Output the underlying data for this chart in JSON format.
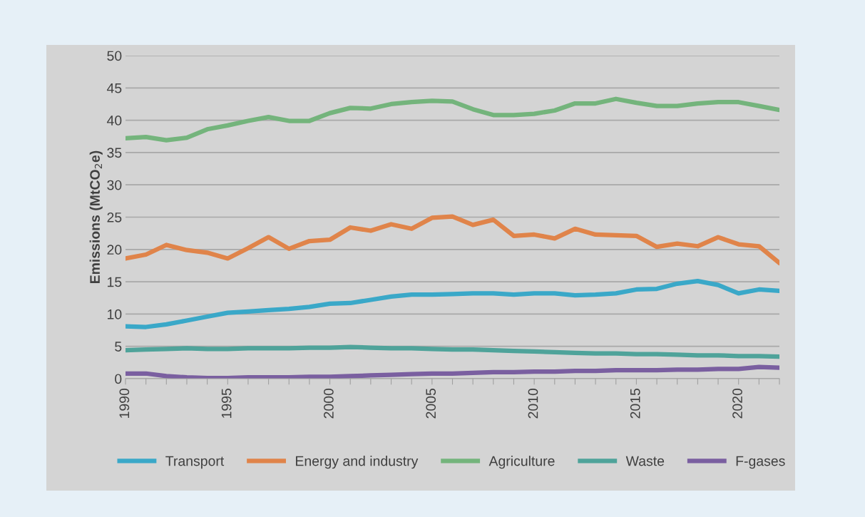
{
  "chart_data": {
    "type": "line",
    "ylabel": "Emissions (MtCO$_{2}$e)",
    "x": [
      1990,
      1991,
      1992,
      1993,
      1994,
      1995,
      1996,
      1997,
      1998,
      1999,
      2000,
      2001,
      2002,
      2003,
      2004,
      2005,
      2006,
      2007,
      2008,
      2009,
      2010,
      2011,
      2012,
      2013,
      2014,
      2015,
      2016,
      2017,
      2018,
      2019,
      2020,
      2021,
      2022
    ],
    "series": [
      {
        "name": "Transport",
        "color": "#3aa8c8",
        "values": [
          8.1,
          8.0,
          8.4,
          9.0,
          9.6,
          10.2,
          10.4,
          10.6,
          10.8,
          11.1,
          11.6,
          11.7,
          12.2,
          12.7,
          13.0,
          13.0,
          13.1,
          13.2,
          13.2,
          13.0,
          13.2,
          13.2,
          12.9,
          13.0,
          13.2,
          13.8,
          13.9,
          14.7,
          15.1,
          14.5,
          13.2,
          13.8,
          13.6
        ]
      },
      {
        "name": "Energy and industry",
        "color": "#e0844a",
        "values": [
          18.6,
          19.2,
          20.7,
          19.9,
          19.5,
          18.6,
          20.2,
          21.9,
          20.1,
          21.3,
          21.5,
          23.4,
          22.9,
          23.9,
          23.2,
          24.9,
          25.1,
          23.8,
          24.6,
          22.1,
          22.3,
          21.7,
          23.2,
          22.3,
          22.2,
          22.1,
          20.4,
          20.9,
          20.5,
          21.9,
          20.8,
          20.5,
          17.9
        ]
      },
      {
        "name": "Agriculture",
        "color": "#74b47c",
        "values": [
          37.2,
          37.4,
          36.9,
          37.3,
          38.6,
          39.2,
          39.9,
          40.5,
          39.9,
          39.9,
          41.1,
          41.9,
          41.8,
          42.5,
          42.8,
          43.0,
          42.9,
          41.7,
          40.8,
          40.8,
          41.0,
          41.5,
          42.6,
          42.6,
          43.3,
          42.7,
          42.2,
          42.2,
          42.6,
          42.8,
          42.8,
          42.2,
          41.6
        ]
      },
      {
        "name": "Waste",
        "color": "#4fa39a",
        "values": [
          4.4,
          4.5,
          4.6,
          4.7,
          4.6,
          4.6,
          4.7,
          4.7,
          4.7,
          4.8,
          4.8,
          4.9,
          4.8,
          4.7,
          4.7,
          4.6,
          4.5,
          4.5,
          4.4,
          4.3,
          4.2,
          4.1,
          4.0,
          3.9,
          3.9,
          3.8,
          3.8,
          3.7,
          3.6,
          3.6,
          3.5,
          3.5,
          3.4
        ]
      },
      {
        "name": "F-gases",
        "color": "#7a5fa0",
        "values": [
          0.8,
          0.8,
          0.4,
          0.2,
          0.1,
          0.1,
          0.2,
          0.2,
          0.2,
          0.3,
          0.3,
          0.4,
          0.5,
          0.6,
          0.7,
          0.8,
          0.8,
          0.9,
          1.0,
          1.0,
          1.1,
          1.1,
          1.2,
          1.2,
          1.3,
          1.3,
          1.3,
          1.4,
          1.4,
          1.5,
          1.5,
          1.8,
          1.7
        ]
      }
    ],
    "xlim": [
      1990,
      2022
    ],
    "xticks": [
      1990,
      {
        "value": 1991,
        "label": null
      },
      {
        "value": 1992,
        "label": null
      },
      {
        "value": 1993,
        "label": null
      },
      {
        "value": 1994,
        "label": null
      },
      1995,
      {
        "value": 1996,
        "label": null
      },
      {
        "value": 1997,
        "label": null
      },
      {
        "value": 1998,
        "label": null
      },
      {
        "value": 1999,
        "label": null
      },
      2000,
      {
        "value": 2001,
        "label": null
      },
      {
        "value": 2002,
        "label": null
      },
      {
        "value": 2003,
        "label": null
      },
      {
        "value": 2004,
        "label": null
      },
      2005,
      {
        "value": 2006,
        "label": null
      },
      {
        "value": 2007,
        "label": null
      },
      {
        "value": 2008,
        "label": null
      },
      {
        "value": 2009,
        "label": null
      },
      2010,
      {
        "value": 2011,
        "label": null
      },
      {
        "value": 2012,
        "label": null
      },
      {
        "value": 2013,
        "label": null
      },
      {
        "value": 2014,
        "label": null
      },
      2015,
      {
        "value": 2016,
        "label": null
      },
      {
        "value": 2017,
        "label": null
      },
      {
        "value": 2018,
        "label": null
      },
      {
        "value": 2019,
        "label": null
      },
      2020,
      {
        "value": 2021,
        "label": null
      },
      {
        "value": 2022,
        "label": null
      }
    ],
    "ylim": [
      0,
      50
    ],
    "yticks": [
      0,
      5,
      10,
      15,
      20,
      25,
      30,
      35,
      40,
      45,
      50
    ],
    "grid": "y",
    "legend": "bottom",
    "marker": "none",
    "line_style": "solid"
  }
}
